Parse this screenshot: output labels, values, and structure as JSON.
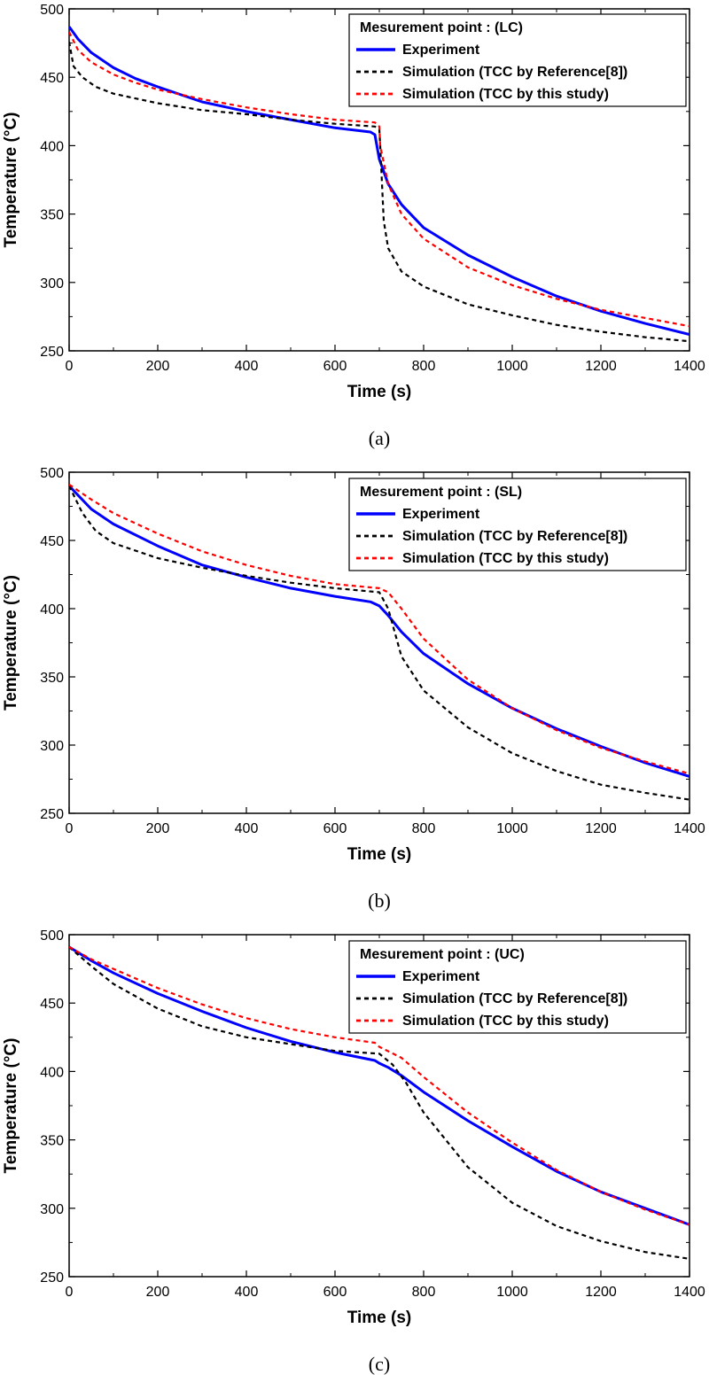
{
  "chart_data": [
    {
      "type": "line",
      "caption": "(a)",
      "legend_title": "Mesurement point : (LC)",
      "xlabel": "Time (s)",
      "ylabel": "Temperature (°C)",
      "xlim": [
        0,
        1400
      ],
      "ylim": [
        250,
        500
      ],
      "xticks": [
        0,
        200,
        400,
        600,
        800,
        1000,
        1200,
        1400
      ],
      "yticks": [
        250,
        300,
        350,
        400,
        450,
        500
      ],
      "legend_position": "top-right",
      "series": [
        {
          "name": "Experiment",
          "color": "#0000ff",
          "style": "solid",
          "points": [
            [
              0,
              487
            ],
            [
              20,
              478
            ],
            [
              50,
              468
            ],
            [
              100,
              457
            ],
            [
              150,
              449
            ],
            [
              200,
              443
            ],
            [
              300,
              432
            ],
            [
              400,
              425
            ],
            [
              500,
              419
            ],
            [
              600,
              413
            ],
            [
              680,
              410
            ],
            [
              690,
              408
            ],
            [
              700,
              390
            ],
            [
              720,
              372
            ],
            [
              750,
              357
            ],
            [
              800,
              340
            ],
            [
              900,
              320
            ],
            [
              1000,
              304
            ],
            [
              1100,
              290
            ],
            [
              1200,
              279
            ],
            [
              1300,
              270
            ],
            [
              1400,
              262
            ]
          ]
        },
        {
          "name": "Simulation (TCC by Reference[8])",
          "color": "#000000",
          "style": "dash",
          "points": [
            [
              0,
              476
            ],
            [
              10,
              458
            ],
            [
              30,
              450
            ],
            [
              60,
              443
            ],
            [
              100,
              438
            ],
            [
              200,
              431
            ],
            [
              300,
              426
            ],
            [
              400,
              423
            ],
            [
              500,
              419
            ],
            [
              600,
              416
            ],
            [
              690,
              414
            ],
            [
              700,
              412
            ],
            [
              702,
              400
            ],
            [
              710,
              345
            ],
            [
              720,
              325
            ],
            [
              750,
              308
            ],
            [
              800,
              297
            ],
            [
              900,
              284
            ],
            [
              1000,
              276
            ],
            [
              1100,
              269
            ],
            [
              1200,
              264
            ],
            [
              1300,
              260
            ],
            [
              1400,
              257
            ]
          ]
        },
        {
          "name": "Simulation (TCC by this study)",
          "color": "#ff0000",
          "style": "dash",
          "points": [
            [
              0,
              483
            ],
            [
              20,
              470
            ],
            [
              50,
              461
            ],
            [
              100,
              452
            ],
            [
              150,
              446
            ],
            [
              200,
              441
            ],
            [
              300,
              434
            ],
            [
              400,
              428
            ],
            [
              500,
              423
            ],
            [
              600,
              419
            ],
            [
              690,
              417
            ],
            [
              700,
              414
            ],
            [
              702,
              400
            ],
            [
              720,
              372
            ],
            [
              750,
              350
            ],
            [
              800,
              332
            ],
            [
              900,
              311
            ],
            [
              1000,
              298
            ],
            [
              1100,
              288
            ],
            [
              1200,
              280
            ],
            [
              1300,
              274
            ],
            [
              1400,
              268
            ]
          ]
        }
      ]
    },
    {
      "type": "line",
      "caption": "(b)",
      "legend_title": "Mesurement point : (SL)",
      "xlabel": "Time (s)",
      "ylabel": "Temperature (°C)",
      "xlim": [
        0,
        1400
      ],
      "ylim": [
        250,
        500
      ],
      "xticks": [
        0,
        200,
        400,
        600,
        800,
        1000,
        1200,
        1400
      ],
      "yticks": [
        250,
        300,
        350,
        400,
        450,
        500
      ],
      "legend_position": "top-right",
      "series": [
        {
          "name": "Experiment",
          "color": "#0000ff",
          "style": "solid",
          "points": [
            [
              0,
              490
            ],
            [
              50,
              473
            ],
            [
              100,
              462
            ],
            [
              200,
              446
            ],
            [
              300,
              432
            ],
            [
              400,
              423
            ],
            [
              500,
              415
            ],
            [
              600,
              409
            ],
            [
              680,
              405
            ],
            [
              700,
              402
            ],
            [
              720,
              395
            ],
            [
              750,
              383
            ],
            [
              800,
              367
            ],
            [
              900,
              345
            ],
            [
              1000,
              327
            ],
            [
              1100,
              312
            ],
            [
              1200,
              299
            ],
            [
              1300,
              287
            ],
            [
              1400,
              277
            ]
          ]
        },
        {
          "name": "Simulation (TCC by Reference[8])",
          "color": "#000000",
          "style": "dash",
          "points": [
            [
              0,
              490
            ],
            [
              30,
              470
            ],
            [
              60,
              457
            ],
            [
              100,
              448
            ],
            [
              200,
              437
            ],
            [
              300,
              430
            ],
            [
              400,
              424
            ],
            [
              500,
              419
            ],
            [
              600,
              415
            ],
            [
              700,
              412
            ],
            [
              720,
              400
            ],
            [
              750,
              365
            ],
            [
              800,
              340
            ],
            [
              900,
              313
            ],
            [
              1000,
              294
            ],
            [
              1100,
              281
            ],
            [
              1200,
              271
            ],
            [
              1300,
              265
            ],
            [
              1400,
              260
            ]
          ]
        },
        {
          "name": "Simulation (TCC by this study)",
          "color": "#ff0000",
          "style": "dash",
          "points": [
            [
              0,
              491
            ],
            [
              50,
              480
            ],
            [
              100,
              470
            ],
            [
              200,
              455
            ],
            [
              300,
              442
            ],
            [
              400,
              432
            ],
            [
              500,
              424
            ],
            [
              600,
              418
            ],
            [
              700,
              415
            ],
            [
              720,
              412
            ],
            [
              750,
              400
            ],
            [
              800,
              378
            ],
            [
              900,
              348
            ],
            [
              1000,
              327
            ],
            [
              1100,
              311
            ],
            [
              1200,
              298
            ],
            [
              1300,
              288
            ],
            [
              1400,
              279
            ]
          ]
        }
      ]
    },
    {
      "type": "line",
      "caption": "(c)",
      "legend_title": "Mesurement point : (UC)",
      "xlabel": "Time (s)",
      "ylabel": "Temperature (°C)",
      "xlim": [
        0,
        1400
      ],
      "ylim": [
        250,
        500
      ],
      "xticks": [
        0,
        200,
        400,
        600,
        800,
        1000,
        1200,
        1400
      ],
      "yticks": [
        250,
        300,
        350,
        400,
        450,
        500
      ],
      "legend_position": "top-right",
      "series": [
        {
          "name": "Experiment",
          "color": "#0000ff",
          "style": "solid",
          "points": [
            [
              0,
              491
            ],
            [
              50,
              481
            ],
            [
              100,
              472
            ],
            [
              200,
              457
            ],
            [
              300,
              444
            ],
            [
              400,
              432
            ],
            [
              500,
              422
            ],
            [
              600,
              414
            ],
            [
              690,
              408
            ],
            [
              700,
              406
            ],
            [
              720,
              403
            ],
            [
              750,
              397
            ],
            [
              800,
              385
            ],
            [
              900,
              364
            ],
            [
              1000,
              345
            ],
            [
              1100,
              327
            ],
            [
              1200,
              312
            ],
            [
              1300,
              300
            ],
            [
              1400,
              288
            ]
          ]
        },
        {
          "name": "Simulation (TCC by Reference[8])",
          "color": "#000000",
          "style": "dash",
          "points": [
            [
              0,
              491
            ],
            [
              50,
              477
            ],
            [
              100,
              464
            ],
            [
              200,
              446
            ],
            [
              300,
              433
            ],
            [
              400,
              425
            ],
            [
              500,
              420
            ],
            [
              600,
              415
            ],
            [
              700,
              413
            ],
            [
              730,
              405
            ],
            [
              760,
              392
            ],
            [
              800,
              370
            ],
            [
              900,
              330
            ],
            [
              1000,
              304
            ],
            [
              1100,
              287
            ],
            [
              1200,
              276
            ],
            [
              1300,
              268
            ],
            [
              1400,
              263
            ]
          ]
        },
        {
          "name": "Simulation (TCC by this study)",
          "color": "#ff0000",
          "style": "dash",
          "points": [
            [
              0,
              491
            ],
            [
              50,
              482
            ],
            [
              100,
              475
            ],
            [
              200,
              461
            ],
            [
              300,
              449
            ],
            [
              400,
              439
            ],
            [
              500,
              431
            ],
            [
              600,
              425
            ],
            [
              690,
              421
            ],
            [
              700,
              418
            ],
            [
              750,
              410
            ],
            [
              800,
              396
            ],
            [
              900,
              370
            ],
            [
              1000,
              348
            ],
            [
              1100,
              328
            ],
            [
              1200,
              312
            ],
            [
              1300,
              299
            ],
            [
              1400,
              288
            ]
          ]
        }
      ]
    }
  ]
}
